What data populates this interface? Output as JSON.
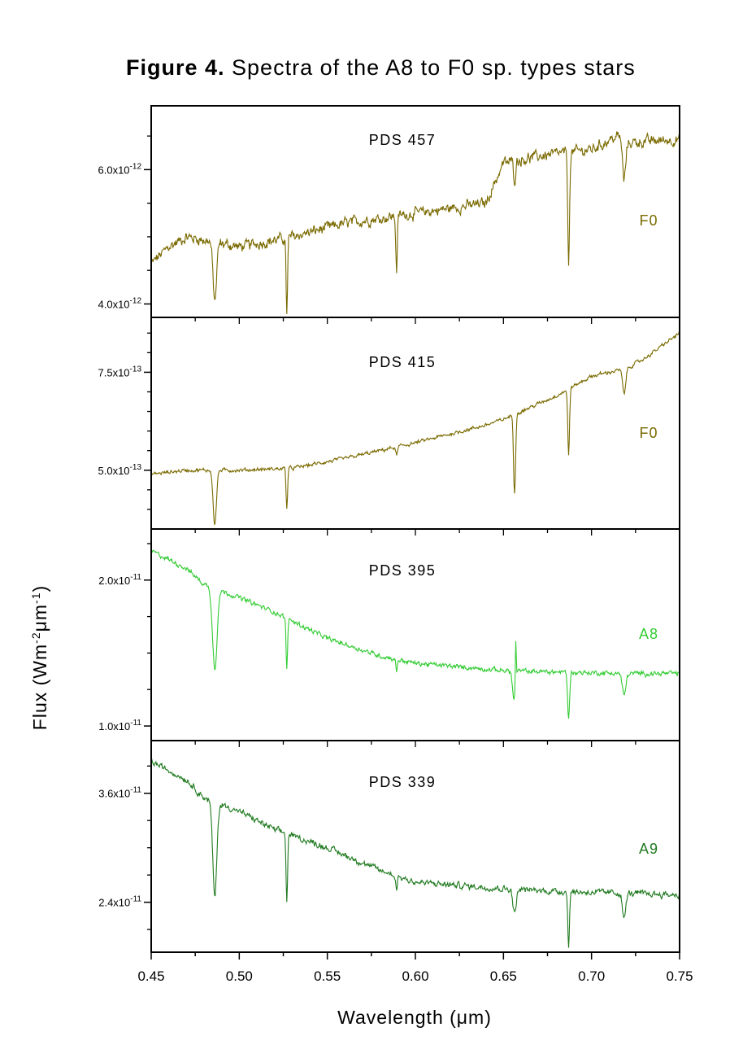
{
  "title": {
    "bold": "Figure 4.",
    "rest": " Spectra of the A8 to F0 sp. types stars"
  },
  "chart_data": {
    "type": "line",
    "title": "Figure 4. Spectra of the A8 to F0 sp. types stars",
    "xlabel": "Wavelength (μm)",
    "ylabel": "Flux (Wm-2μm-1)",
    "xlim": [
      0.45,
      0.75
    ],
    "x_ticks": [
      "0.45",
      "0.50",
      "0.55",
      "0.60",
      "0.65",
      "0.70",
      "0.75"
    ],
    "x_minor_step": 0.025,
    "panels": [
      {
        "name": "PDS 457",
        "sptype": "F0",
        "color": "#7a6a00",
        "ylim": [
          3.8e-12,
          6.95e-12
        ],
        "y_ticks": [
          {
            "value": 6e-12,
            "mant": "6.0x10",
            "exp": "-12"
          },
          {
            "value": 4e-12,
            "mant": "4.0x10",
            "exp": "-12"
          }
        ],
        "y_minor_step": 5e-13,
        "continuum": [
          [
            0.45,
            4.6e-12
          ],
          [
            0.46,
            4.85e-12
          ],
          [
            0.47,
            5e-12
          ],
          [
            0.5,
            4.85e-12
          ],
          [
            0.52,
            4.95e-12
          ],
          [
            0.53,
            5e-12
          ],
          [
            0.56,
            5.2e-12
          ],
          [
            0.6,
            5.35e-12
          ],
          [
            0.64,
            5.5e-12
          ],
          [
            0.65,
            6.1e-12
          ],
          [
            0.67,
            6.2e-12
          ],
          [
            0.7,
            6.3e-12
          ],
          [
            0.715,
            6.5e-12
          ],
          [
            0.72,
            6.4e-12
          ],
          [
            0.75,
            6.45e-12
          ]
        ],
        "lines": [
          {
            "wl": 0.4861,
            "depth": 8.8e-13,
            "width": 0.0014
          },
          {
            "wl": 0.527,
            "depth": 1.1e-12,
            "width": 0.0006
          },
          {
            "wl": 0.5893,
            "depth": 8e-13,
            "width": 0.0006
          },
          {
            "wl": 0.6563,
            "depth": 3e-13,
            "width": 0.0008
          },
          {
            "wl": 0.687,
            "depth": 1.7e-12,
            "width": 0.0007
          },
          {
            "wl": 0.7185,
            "depth": 6e-13,
            "width": 0.0012
          }
        ],
        "noise": 6e-14
      },
      {
        "name": "PDS 415",
        "sptype": "F0",
        "color": "#7a6a00",
        "ylim": [
          3.5e-13,
          8.9e-13
        ],
        "y_ticks": [
          {
            "value": 7.5e-13,
            "mant": "7.5x10",
            "exp": "-13"
          },
          {
            "value": 5e-13,
            "mant": "5.0x10",
            "exp": "-13"
          }
        ],
        "y_minor_step": 5e-14,
        "continuum": [
          [
            0.45,
            4.9e-13
          ],
          [
            0.47,
            5e-13
          ],
          [
            0.5,
            5e-13
          ],
          [
            0.53,
            5.05e-13
          ],
          [
            0.56,
            5.3e-13
          ],
          [
            0.6,
            5.7e-13
          ],
          [
            0.64,
            6.15e-13
          ],
          [
            0.65,
            6.3e-13
          ],
          [
            0.68,
            6.9e-13
          ],
          [
            0.7,
            7.4e-13
          ],
          [
            0.72,
            7.6e-13
          ],
          [
            0.73,
            7.85e-13
          ],
          [
            0.75,
            8.5e-13
          ]
        ],
        "lines": [
          {
            "wl": 0.4861,
            "depth": 1.4e-13,
            "width": 0.0013
          },
          {
            "wl": 0.527,
            "depth": 1e-13,
            "width": 0.0006
          },
          {
            "wl": 0.5893,
            "depth": 2e-14,
            "width": 0.0008
          },
          {
            "wl": 0.6563,
            "depth": 2e-13,
            "width": 0.0008
          },
          {
            "wl": 0.687,
            "depth": 1.7e-13,
            "width": 0.0007
          },
          {
            "wl": 0.7185,
            "depth": 6.5e-14,
            "width": 0.0012
          }
        ],
        "noise": 3.5e-15
      },
      {
        "name": "PDS 395",
        "sptype": "A8",
        "color": "#33cc33",
        "ylim": [
          9e-12,
          2.35e-11
        ],
        "y_ticks": [
          {
            "value": 2e-11,
            "mant": "2.0x10",
            "exp": "-11"
          },
          {
            "value": 1e-11,
            "mant": "1.0x10",
            "exp": "-11"
          }
        ],
        "y_minor_step": 2.5e-12,
        "continuum": [
          [
            0.45,
            2.2e-11
          ],
          [
            0.47,
            2.08e-11
          ],
          [
            0.48,
            1.97e-11
          ],
          [
            0.5,
            1.88e-11
          ],
          [
            0.52,
            1.78e-11
          ],
          [
            0.55,
            1.6e-11
          ],
          [
            0.58,
            1.48e-11
          ],
          [
            0.6,
            1.43e-11
          ],
          [
            0.65,
            1.38e-11
          ],
          [
            0.68,
            1.37e-11
          ],
          [
            0.72,
            1.36e-11
          ],
          [
            0.75,
            1.36e-11
          ]
        ],
        "lines": [
          {
            "wl": 0.4861,
            "depth": 5.5e-12,
            "width": 0.0018
          },
          {
            "wl": 0.527,
            "depth": 3.5e-12,
            "width": 0.0006
          },
          {
            "wl": 0.5893,
            "depth": 8e-13,
            "width": 0.0006
          },
          {
            "wl": 0.656,
            "depth": 2e-12,
            "width": 0.0012
          },
          {
            "wl": 0.657,
            "depth": -3e-12,
            "width": 0.0004
          },
          {
            "wl": 0.687,
            "depth": 3.2e-12,
            "width": 0.0008
          },
          {
            "wl": 0.7185,
            "depth": 1.5e-12,
            "width": 0.0014
          }
        ],
        "noise": 1.2e-13
      },
      {
        "name": "PDS 339",
        "sptype": "A9",
        "color": "#207a20",
        "ylim": [
          1.85e-11,
          4.18e-11
        ],
        "y_ticks": [
          {
            "value": 3.6e-11,
            "mant": "3.6x10",
            "exp": "-11"
          },
          {
            "value": 2.4e-11,
            "mant": "2.4x10",
            "exp": "-11"
          }
        ],
        "y_minor_step": 3e-12,
        "continuum": [
          [
            0.45,
            3.95e-11
          ],
          [
            0.47,
            3.75e-11
          ],
          [
            0.48,
            3.55e-11
          ],
          [
            0.5,
            3.4e-11
          ],
          [
            0.52,
            3.2e-11
          ],
          [
            0.55,
            3e-11
          ],
          [
            0.58,
            2.75e-11
          ],
          [
            0.6,
            2.62e-11
          ],
          [
            0.65,
            2.55e-11
          ],
          [
            0.68,
            2.52e-11
          ],
          [
            0.72,
            2.5e-11
          ],
          [
            0.75,
            2.48e-11
          ]
        ],
        "lines": [
          {
            "wl": 0.4861,
            "depth": 1.05e-11,
            "width": 0.0016
          },
          {
            "wl": 0.527,
            "depth": 7.5e-12,
            "width": 0.0006
          },
          {
            "wl": 0.5893,
            "depth": 1.5e-12,
            "width": 0.0006
          },
          {
            "wl": 0.6563,
            "depth": 2.7e-12,
            "width": 0.0013
          },
          {
            "wl": 0.687,
            "depth": 5.8e-12,
            "width": 0.0007
          },
          {
            "wl": 0.7185,
            "depth": 2.8e-12,
            "width": 0.0013
          }
        ],
        "noise": 2.5e-13
      }
    ]
  }
}
